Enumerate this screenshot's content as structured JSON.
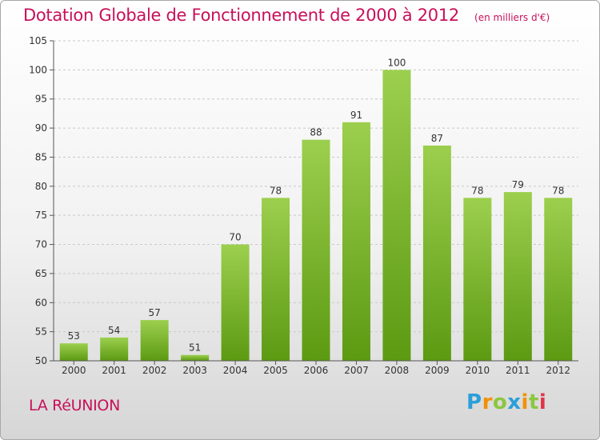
{
  "title": "Dotation Globale de Fonctionnement de 2000 à 2012",
  "unit_note": "(en milliers d'€)",
  "region": "LA RéUNION",
  "logo": {
    "text": "Proxiti",
    "colors": [
      "#2a9fd8",
      "#f29100",
      "#8cc63f",
      "#2a9fd8",
      "#f29100",
      "#8cc63f",
      "#e2334b"
    ]
  },
  "chart_data": {
    "type": "bar",
    "categories": [
      "2000",
      "2001",
      "2002",
      "2003",
      "2004",
      "2005",
      "2006",
      "2007",
      "2008",
      "2009",
      "2010",
      "2011",
      "2012"
    ],
    "values": [
      53,
      54,
      57,
      51,
      70,
      78,
      88,
      91,
      100,
      87,
      78,
      79,
      78
    ],
    "ylim": [
      50,
      105
    ],
    "yticks": [
      50,
      55,
      60,
      65,
      70,
      75,
      80,
      85,
      90,
      95,
      100,
      105
    ],
    "grid": true,
    "colors": {
      "bar_top": "#9ccf4e",
      "bar_bottom": "#5c9a12",
      "grid": "#c8c8c8",
      "axis": "#555555",
      "text": "#333333"
    }
  }
}
